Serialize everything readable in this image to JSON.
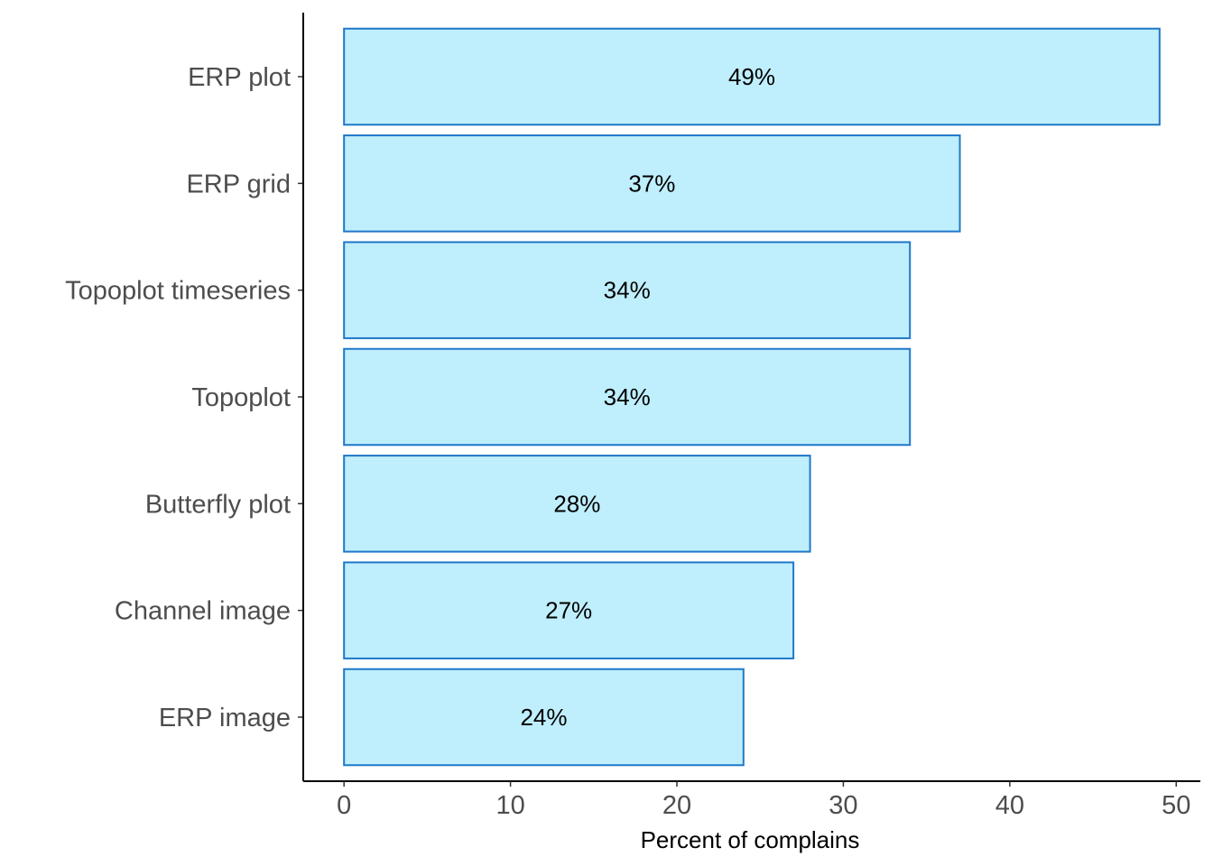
{
  "chart_data": {
    "type": "bar",
    "orientation": "horizontal",
    "title": "",
    "xlabel": "Percent of complains",
    "ylabel": "",
    "categories": [
      "ERP plot",
      "ERP grid",
      "Topoplot timeseries",
      "Topoplot",
      "Butterfly plot",
      "Channel image",
      "ERP image"
    ],
    "values": [
      49,
      37,
      34,
      34,
      28,
      27,
      24
    ],
    "data_labels": [
      "49%",
      "37%",
      "34%",
      "34%",
      "28%",
      "27%",
      "24%"
    ],
    "x_ticks": [
      0,
      10,
      20,
      30,
      40,
      50
    ],
    "xlim": [
      -2.45,
      51.45
    ],
    "grid": false,
    "colors": {
      "bar_fill": "#bfeefc",
      "bar_stroke": "#1f78c8",
      "axis": "#000000"
    }
  }
}
